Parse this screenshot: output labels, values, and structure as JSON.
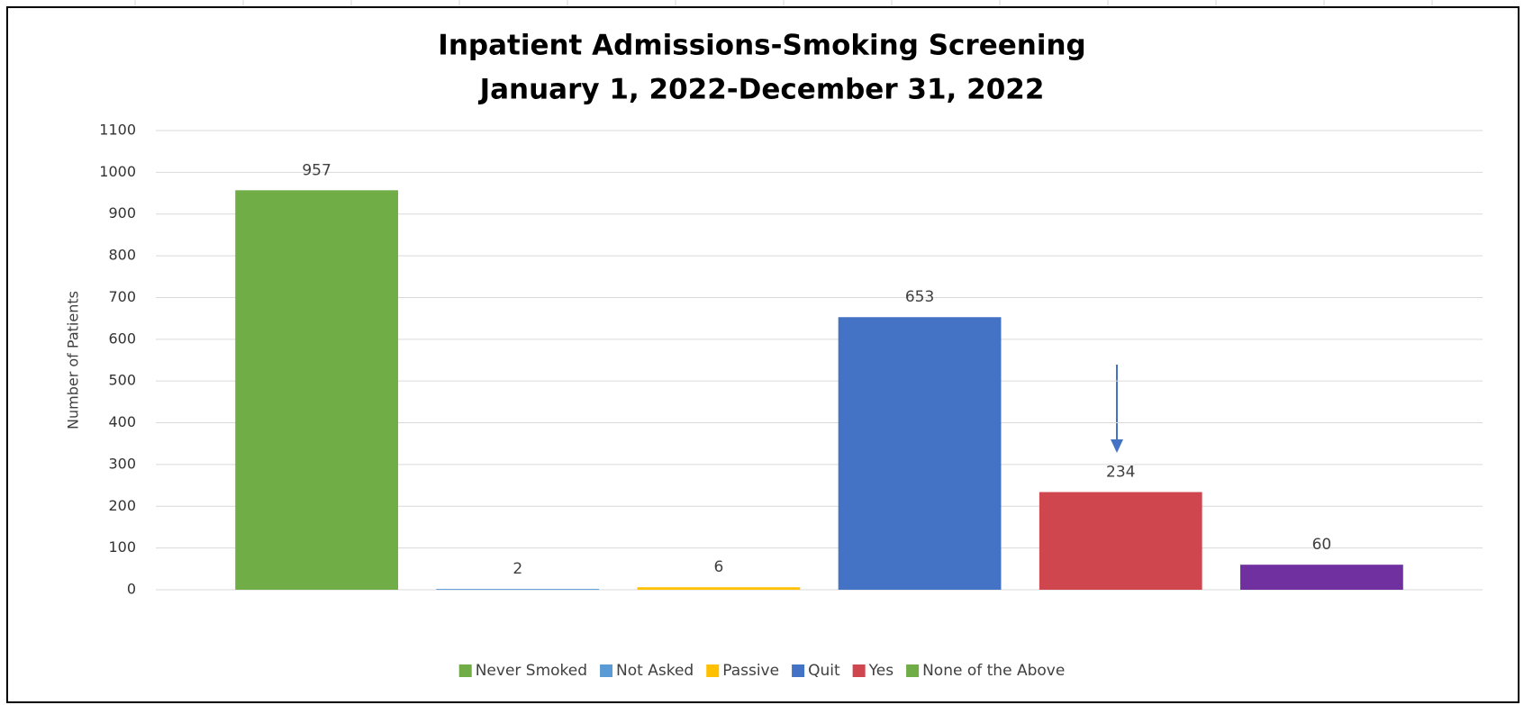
{
  "chart_data": {
    "type": "bar",
    "title": "Inpatient Admissions-Smoking Screening",
    "subtitle": "January 1, 2022-December 31, 2022",
    "y_label": "Number of Patients",
    "series": [
      {
        "name": "Never Smoked",
        "color": "#70ad47",
        "values": [
          957
        ]
      },
      {
        "name": "Not Asked",
        "color": "#5b9bd5",
        "values": [
          2
        ]
      },
      {
        "name": "Passive",
        "color": "#ffc000",
        "values": [
          6
        ]
      },
      {
        "name": "Quit",
        "color": "#4472c4",
        "values": [
          653
        ]
      },
      {
        "name": "Yes",
        "color": "#d0464f",
        "values": [
          234
        ]
      },
      {
        "name": "None of the Above",
        "color": "#7030a0",
        "legend_color": "#70ad47",
        "values": [
          60
        ]
      }
    ],
    "ylim": [
      0,
      1100
    ],
    "yticks": [
      0,
      100,
      200,
      300,
      400,
      500,
      600,
      700,
      800,
      900,
      1000,
      1100
    ],
    "grid": true,
    "legend": "bottom"
  }
}
